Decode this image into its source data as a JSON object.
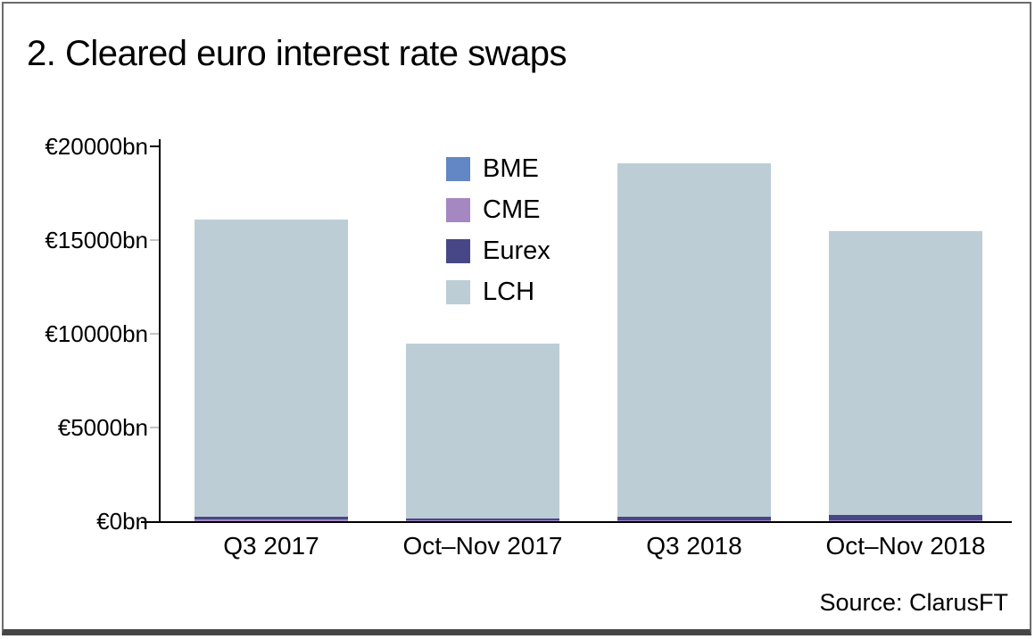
{
  "title": "2. Cleared euro interest rate swaps",
  "source_note": "Source: ClarusFT",
  "colors": {
    "border": "#6b6b6b",
    "axis": "#000000",
    "minor_tick": "#c4c4c4",
    "series": {
      "BME": "#6386C4",
      "CME": "#A587C2",
      "Eurex": "#474787",
      "LCH": "#BCCDD5"
    }
  },
  "chart_data": {
    "type": "bar",
    "stacked": true,
    "title": "2. Cleared euro interest rate swaps",
    "categories": [
      "Q3 2017",
      "Oct–Nov 2017",
      "Q3 2018",
      "Oct–Nov 2018"
    ],
    "series": [
      {
        "name": "BME",
        "values": [
          0,
          0,
          0,
          0
        ]
      },
      {
        "name": "CME",
        "values": [
          100,
          30,
          50,
          30
        ]
      },
      {
        "name": "Eurex",
        "values": [
          150,
          100,
          200,
          300
        ]
      },
      {
        "name": "LCH",
        "values": [
          15850,
          9370,
          18850,
          15170
        ]
      }
    ],
    "totals": [
      16100,
      9500,
      19100,
      15500
    ],
    "unit": "€bn",
    "ylim": [
      0,
      20000
    ],
    "yticks": [
      0,
      5000,
      10000,
      15000,
      20000
    ],
    "ytick_labels": [
      "€0bn",
      "€5000bn",
      "€10000bn",
      "€15000bn",
      "€20000bn"
    ],
    "xlabel": "",
    "ylabel": "",
    "grid": false,
    "legend": [
      "BME",
      "CME",
      "Eurex",
      "LCH"
    ],
    "legend_position": "inside upper-middle-left"
  }
}
